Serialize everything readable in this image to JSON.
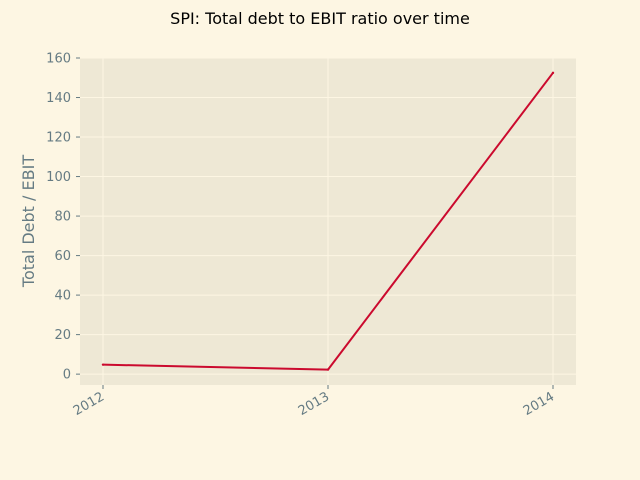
{
  "chart_data": {
    "type": "line",
    "title": "SPI: Total debt to EBIT ratio over time",
    "xlabel": "",
    "ylabel": "Total Debt / EBIT",
    "x": [
      "2012",
      "2013",
      "2014"
    ],
    "series": [
      {
        "values": [
          4.8,
          2.3,
          152.5
        ]
      }
    ],
    "ylim": [
      -5.5,
      160
    ],
    "yticks": [
      0,
      20,
      40,
      60,
      80,
      100,
      120,
      140,
      160
    ],
    "grid": true,
    "legend": "none",
    "colors": {
      "background": "#fdf6e3",
      "plot_background": "#eee8d5",
      "line": "#cb0a2e",
      "grid": "#fdf6e3",
      "tick_text": "#657b83",
      "title_text": "#000000"
    }
  }
}
